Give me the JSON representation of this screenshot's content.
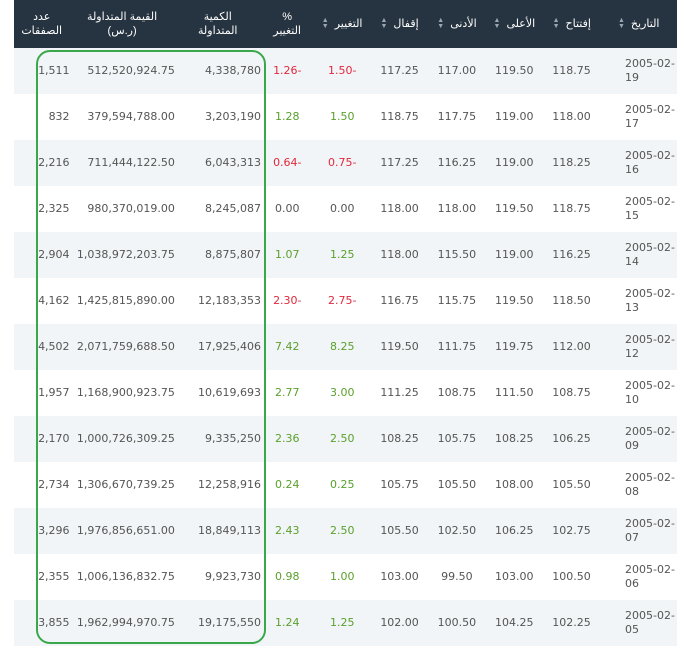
{
  "header": {
    "date": "التاريخ",
    "open": "إفتتاح",
    "high": "الأعلى",
    "low": "الأدنى",
    "close": "إقفال",
    "change": "التغيير",
    "pct_line1": "%",
    "pct_line2": "التغيير",
    "qty_line1": "الكمية",
    "qty_line2": "المتداولة",
    "val_line1": "القيمة المتداولة",
    "val_line2": "(ر.س)",
    "cnt_line1": "عدد",
    "cnt_line2": "الصفقات"
  },
  "rows": [
    {
      "date": "2005-02-19",
      "open": "118.75",
      "high": "119.50",
      "low": "117.00",
      "close": "117.25",
      "change": "-1.50",
      "pct": "-1.26",
      "qty": "4,338,780",
      "value": "512,520,924.75",
      "count": "1,511",
      "dir": "neg"
    },
    {
      "date": "2005-02-17",
      "open": "118.00",
      "high": "119.00",
      "low": "117.75",
      "close": "118.75",
      "change": "1.50",
      "pct": "1.28",
      "qty": "3,203,190",
      "value": "379,594,788.00",
      "count": "832",
      "dir": "pos"
    },
    {
      "date": "2005-02-16",
      "open": "118.25",
      "high": "119.00",
      "low": "116.25",
      "close": "117.25",
      "change": "-0.75",
      "pct": "-0.64",
      "qty": "6,043,313",
      "value": "711,444,122.50",
      "count": "2,216",
      "dir": "neg"
    },
    {
      "date": "2005-02-15",
      "open": "118.75",
      "high": "119.50",
      "low": "118.00",
      "close": "118.00",
      "change": "0.00",
      "pct": "0.00",
      "qty": "8,245,087",
      "value": "980,370,019.00",
      "count": "2,325",
      "dir": "neu"
    },
    {
      "date": "2005-02-14",
      "open": "116.25",
      "high": "119.00",
      "low": "115.50",
      "close": "118.00",
      "change": "1.25",
      "pct": "1.07",
      "qty": "8,875,807",
      "value": "1,038,972,203.75",
      "count": "2,904",
      "dir": "pos"
    },
    {
      "date": "2005-02-13",
      "open": "118.50",
      "high": "119.50",
      "low": "115.75",
      "close": "116.75",
      "change": "-2.75",
      "pct": "-2.30",
      "qty": "12,183,353",
      "value": "1,425,815,890.00",
      "count": "4,162",
      "dir": "neg"
    },
    {
      "date": "2005-02-12",
      "open": "112.00",
      "high": "119.75",
      "low": "111.75",
      "close": "119.50",
      "change": "8.25",
      "pct": "7.42",
      "qty": "17,925,406",
      "value": "2,071,759,688.50",
      "count": "4,502",
      "dir": "pos"
    },
    {
      "date": "2005-02-10",
      "open": "108.75",
      "high": "111.50",
      "low": "108.75",
      "close": "111.25",
      "change": "3.00",
      "pct": "2.77",
      "qty": "10,619,693",
      "value": "1,168,900,923.75",
      "count": "1,957",
      "dir": "pos"
    },
    {
      "date": "2005-02-09",
      "open": "106.25",
      "high": "108.25",
      "low": "105.75",
      "close": "108.25",
      "change": "2.50",
      "pct": "2.36",
      "qty": "9,335,250",
      "value": "1,000,726,309.25",
      "count": "2,170",
      "dir": "pos"
    },
    {
      "date": "2005-02-08",
      "open": "105.50",
      "high": "108.00",
      "low": "105.50",
      "close": "105.75",
      "change": "0.25",
      "pct": "0.24",
      "qty": "12,258,916",
      "value": "1,306,670,739.25",
      "count": "2,734",
      "dir": "pos"
    },
    {
      "date": "2005-02-07",
      "open": "102.75",
      "high": "106.25",
      "low": "102.50",
      "close": "105.50",
      "change": "2.50",
      "pct": "2.43",
      "qty": "18,849,113",
      "value": "1,976,856,651.00",
      "count": "3,296",
      "dir": "pos"
    },
    {
      "date": "2005-02-06",
      "open": "100.50",
      "high": "103.00",
      "low": "99.50",
      "close": "103.00",
      "change": "1.00",
      "pct": "0.98",
      "qty": "9,923,730",
      "value": "1,006,136,832.75",
      "count": "2,355",
      "dir": "pos"
    },
    {
      "date": "2005-02-05",
      "open": "102.25",
      "high": "104.25",
      "low": "100.50",
      "close": "102.00",
      "change": "1.25",
      "pct": "1.24",
      "qty": "19,175,550",
      "value": "1,962,994,970.75",
      "count": "3,855",
      "dir": "pos"
    }
  ],
  "colors": {
    "header_bg": "#263340",
    "positive": "#5aa02c",
    "negative": "#e0283c",
    "highlight_border": "#3aa84a",
    "row_alt": "#f2f5f7"
  }
}
